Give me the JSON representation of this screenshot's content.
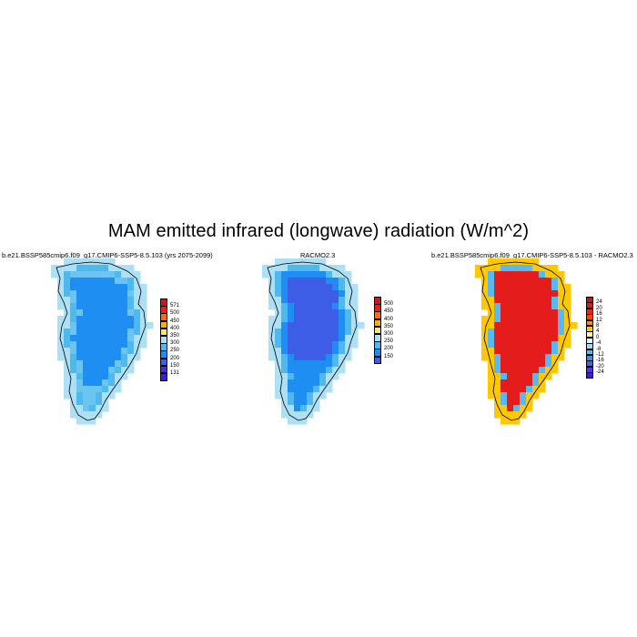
{
  "title": "MAM emitted infrared (longwave) radiation (W/m^2)",
  "panels": [
    {
      "title": "b.e21.BSSP585cmip6.f09_g17.CMIP6-SSP5-8.5.103 (yrs 2075-2099)",
      "colorbar": {
        "labels": [
          "571",
          "500",
          "450",
          "400",
          "350",
          "300",
          "250",
          "200",
          "150",
          "131"
        ],
        "colors": [
          "#d41616",
          "#ee1c1c",
          "#ff6c00",
          "#ffaf00",
          "#fbe57a",
          "#aee0f5",
          "#4fb8ec",
          "#1e8ef2",
          "#3f5ee7",
          "#4a2ce0",
          "#3c1de0"
        ]
      },
      "palette": [
        "#6cc5f0",
        "#1e8ef2",
        "#aee0f5",
        "#4fb8ec"
      ]
    },
    {
      "title": "RACMO2.3",
      "colorbar": {
        "labels": [
          "500",
          "450",
          "400",
          "350",
          "300",
          "250",
          "200",
          "150"
        ],
        "colors": [
          "#d41616",
          "#ee1c1c",
          "#ff6c00",
          "#ffaf00",
          "#fbe57a",
          "#aee0f5",
          "#4fb8ec",
          "#1e8ef2",
          "#3f5ee7"
        ]
      },
      "palette": [
        "#1e8ef2",
        "#3f5ee7",
        "#aee0f5",
        "#4fb8ec"
      ]
    },
    {
      "title": "b.e21.BSSP585cmip6.f09_g17.CMIP6-SSP5-8.5.103 - RACMO2.3",
      "colorbar": {
        "labels": [
          "24",
          "20",
          "16",
          "12",
          "8",
          "4",
          "0",
          "-4",
          "-8",
          "-12",
          "-16",
          "-20",
          "-24"
        ],
        "colors": [
          "#c81414",
          "#e01b1b",
          "#f02222",
          "#ff4400",
          "#ff8a00",
          "#ffc800",
          "#fff5a0",
          "#e0f4ff",
          "#9fd8f5",
          "#59b8ee",
          "#2f94f0",
          "#3568e8",
          "#4a3ae2",
          "#3c1de0"
        ]
      },
      "palette": [
        "#e41c1c",
        "#ff6c00",
        "#ffc800",
        "#59b8ee"
      ]
    }
  ]
}
